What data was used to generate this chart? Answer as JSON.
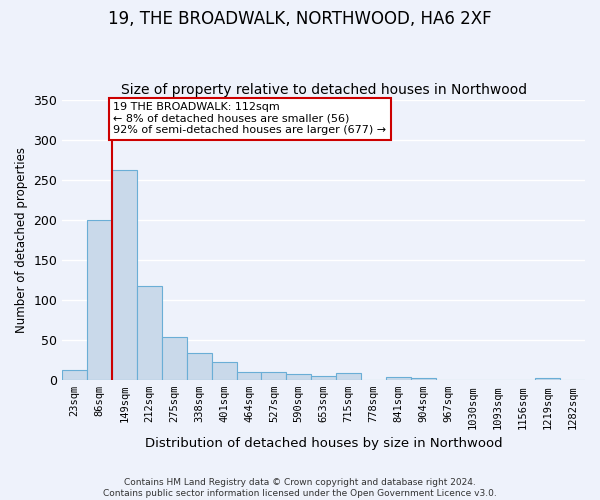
{
  "title": "19, THE BROADWALK, NORTHWOOD, HA6 2XF",
  "subtitle": "Size of property relative to detached houses in Northwood",
  "xlabel": "Distribution of detached houses by size in Northwood",
  "ylabel": "Number of detached properties",
  "bar_labels": [
    "23sqm",
    "86sqm",
    "149sqm",
    "212sqm",
    "275sqm",
    "338sqm",
    "401sqm",
    "464sqm",
    "527sqm",
    "590sqm",
    "653sqm",
    "715sqm",
    "778sqm",
    "841sqm",
    "904sqm",
    "967sqm",
    "1030sqm",
    "1093sqm",
    "1156sqm",
    "1219sqm",
    "1282sqm"
  ],
  "bar_values": [
    13,
    200,
    262,
    117,
    54,
    34,
    23,
    10,
    10,
    7,
    5,
    9,
    0,
    4,
    3,
    0,
    0,
    0,
    0,
    2,
    0
  ],
  "bar_color": "#c9d9ea",
  "bar_edge_color": "#6aaed6",
  "ylim": [
    0,
    350
  ],
  "yticks": [
    0,
    50,
    100,
    150,
    200,
    250,
    300,
    350
  ],
  "vline_color": "#cc0000",
  "annotation_title": "19 THE BROADWALK: 112sqm",
  "annotation_line1": "← 8% of detached houses are smaller (56)",
  "annotation_line2": "92% of semi-detached houses are larger (677) →",
  "annotation_box_color": "#cc0000",
  "footer_line1": "Contains HM Land Registry data © Crown copyright and database right 2024.",
  "footer_line2": "Contains public sector information licensed under the Open Government Licence v3.0.",
  "bg_color": "#eef2fb",
  "grid_color": "#ffffff"
}
